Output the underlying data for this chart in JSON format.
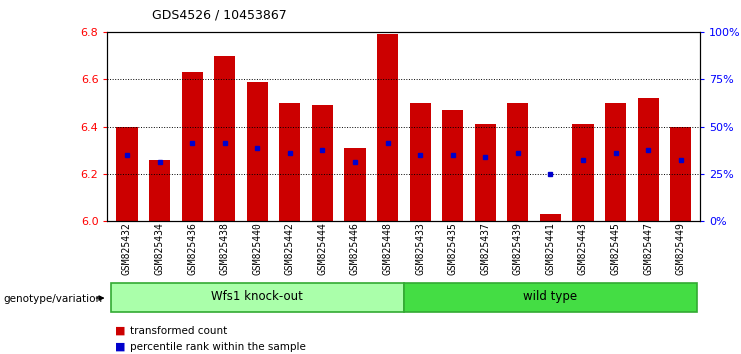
{
  "title": "GDS4526 / 10453867",
  "samples": [
    "GSM825432",
    "GSM825434",
    "GSM825436",
    "GSM825438",
    "GSM825440",
    "GSM825442",
    "GSM825444",
    "GSM825446",
    "GSM825448",
    "GSM825433",
    "GSM825435",
    "GSM825437",
    "GSM825439",
    "GSM825441",
    "GSM825443",
    "GSM825445",
    "GSM825447",
    "GSM825449"
  ],
  "bar_heights": [
    6.4,
    6.26,
    6.63,
    6.7,
    6.59,
    6.5,
    6.49,
    6.31,
    6.79,
    6.5,
    6.47,
    6.41,
    6.5,
    6.03,
    6.41,
    6.5,
    6.52,
    6.4
  ],
  "blue_dot_y": [
    6.28,
    6.25,
    6.33,
    6.33,
    6.31,
    6.29,
    6.3,
    6.25,
    6.33,
    6.28,
    6.28,
    6.27,
    6.29,
    6.2,
    6.26,
    6.29,
    6.3,
    6.26
  ],
  "ylim": [
    6.0,
    6.8
  ],
  "yticks_left": [
    6.0,
    6.2,
    6.4,
    6.6,
    6.8
  ],
  "yticks_right": [
    0,
    25,
    50,
    75,
    100
  ],
  "yticklabels_right": [
    "0%",
    "25%",
    "50%",
    "75%",
    "100%"
  ],
  "bar_color": "#cc0000",
  "dot_color": "#0000cc",
  "background_color": "#ffffff",
  "group1_label": "Wfs1 knock-out",
  "group2_label": "wild type",
  "group1_color": "#aaffaa",
  "group2_color": "#44dd44",
  "group1_count": 9,
  "group2_count": 9,
  "legend_red": "transformed count",
  "legend_blue": "percentile rank within the sample",
  "genotype_label": "genotype/variation",
  "bar_width": 0.65
}
